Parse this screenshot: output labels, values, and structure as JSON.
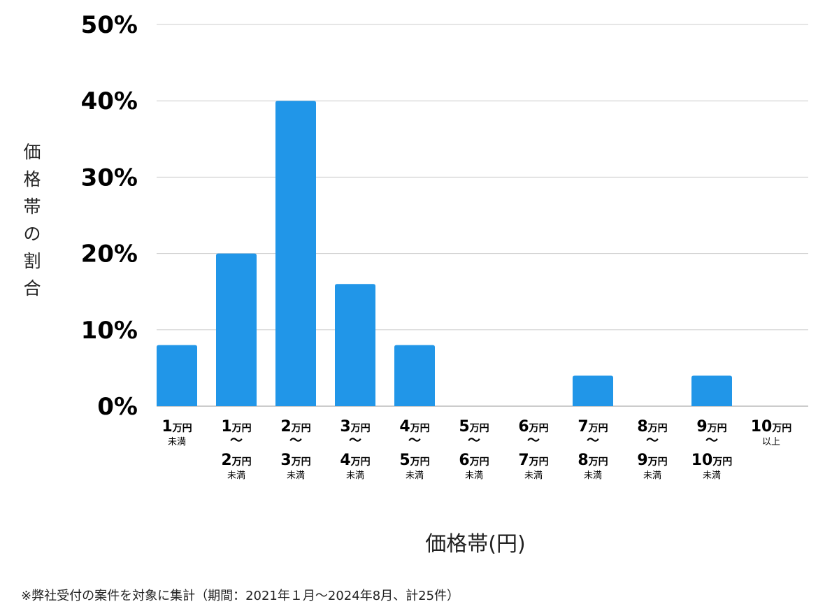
{
  "chart_data": {
    "type": "bar",
    "categories": [
      {
        "lines": [
          {
            "num": "1",
            "unit": "万円"
          }
        ],
        "suffix": "未満"
      },
      {
        "lines": [
          {
            "num": "1",
            "unit": "万円"
          },
          {
            "tilde": "〜"
          },
          {
            "num": "2",
            "unit": "万円"
          }
        ],
        "suffix": "未満"
      },
      {
        "lines": [
          {
            "num": "2",
            "unit": "万円"
          },
          {
            "tilde": "〜"
          },
          {
            "num": "3",
            "unit": "万円"
          }
        ],
        "suffix": "未満"
      },
      {
        "lines": [
          {
            "num": "3",
            "unit": "万円"
          },
          {
            "tilde": "〜"
          },
          {
            "num": "4",
            "unit": "万円"
          }
        ],
        "suffix": "未満"
      },
      {
        "lines": [
          {
            "num": "4",
            "unit": "万円"
          },
          {
            "tilde": "〜"
          },
          {
            "num": "5",
            "unit": "万円"
          }
        ],
        "suffix": "未満"
      },
      {
        "lines": [
          {
            "num": "5",
            "unit": "万円"
          },
          {
            "tilde": "〜"
          },
          {
            "num": "6",
            "unit": "万円"
          }
        ],
        "suffix": "未満"
      },
      {
        "lines": [
          {
            "num": "6",
            "unit": "万円"
          },
          {
            "tilde": "〜"
          },
          {
            "num": "7",
            "unit": "万円"
          }
        ],
        "suffix": "未満"
      },
      {
        "lines": [
          {
            "num": "7",
            "unit": "万円"
          },
          {
            "tilde": "〜"
          },
          {
            "num": "8",
            "unit": "万円"
          }
        ],
        "suffix": "未満"
      },
      {
        "lines": [
          {
            "num": "8",
            "unit": "万円"
          },
          {
            "tilde": "〜"
          },
          {
            "num": "9",
            "unit": "万円"
          }
        ],
        "suffix": "未満"
      },
      {
        "lines": [
          {
            "num": "9",
            "unit": "万円"
          },
          {
            "tilde": "〜"
          },
          {
            "num": "10",
            "unit": "万円"
          }
        ],
        "suffix": "未満"
      },
      {
        "lines": [
          {
            "num": "10",
            "unit": "万円"
          }
        ],
        "suffix": "以上"
      }
    ],
    "values": [
      8,
      20,
      40,
      16,
      8,
      0,
      0,
      4,
      0,
      4,
      0
    ],
    "ylim": [
      0,
      50
    ],
    "yticks": [
      0,
      10,
      20,
      30,
      40,
      50
    ],
    "ytick_labels": [
      "0%",
      "10%",
      "20%",
      "30%",
      "40%",
      "50%"
    ],
    "xlabel": "価格帯(円)",
    "ylabel": "価格帯の割合",
    "grid": true,
    "bar_color": "#2196e8",
    "grid_color": "#cccccc"
  },
  "footnote": "※弊社受付の案件を対象に集計（期間：2021年１月〜2024年8月、計25件）"
}
